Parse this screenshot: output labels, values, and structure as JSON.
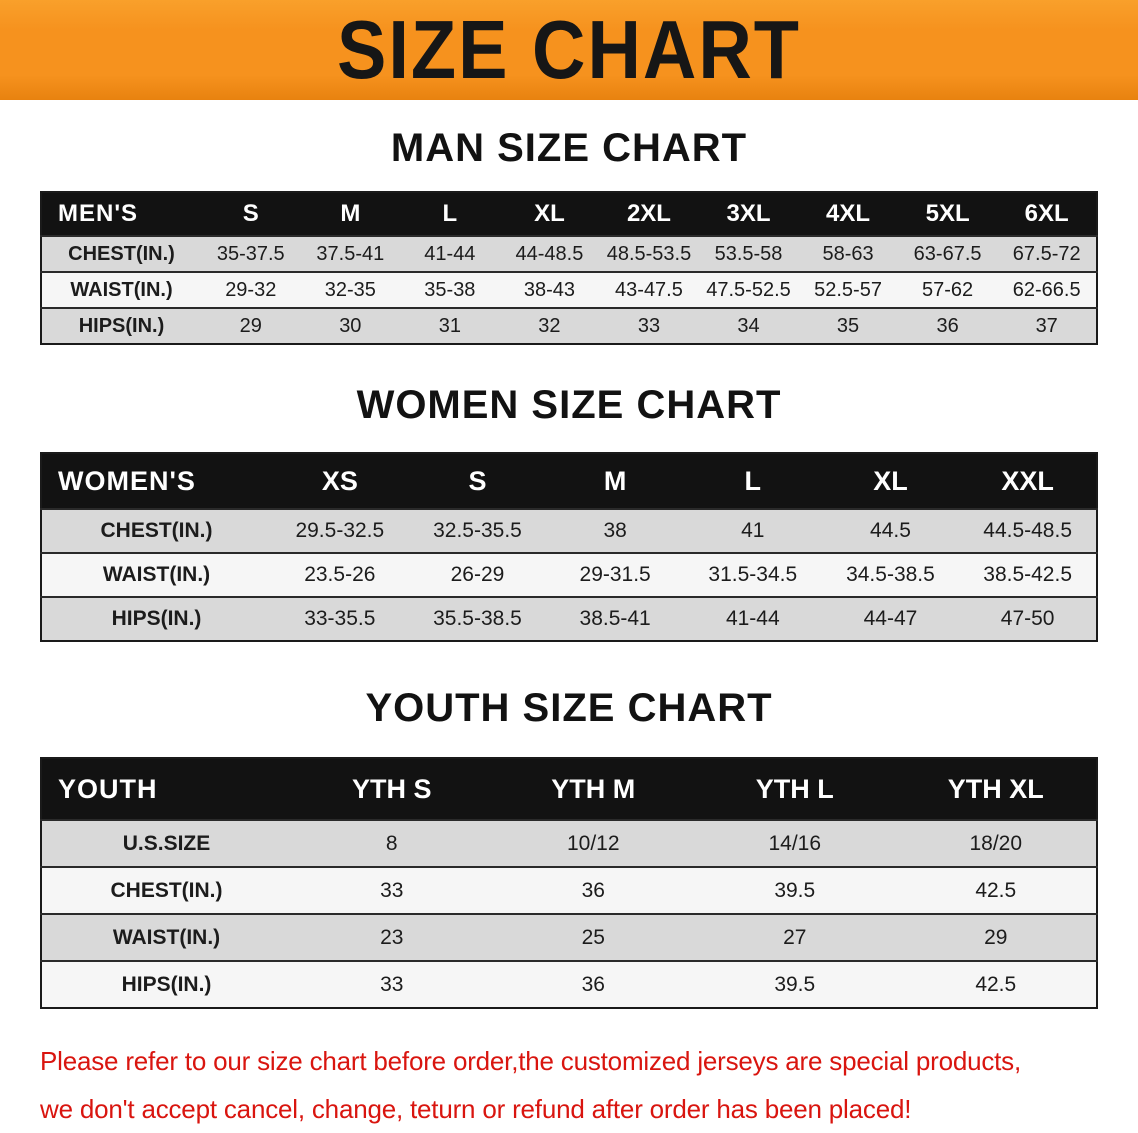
{
  "banner": {
    "title": "SIZE CHART"
  },
  "colors": {
    "banner_orange": "#f6921e",
    "header_black": "#121212",
    "row_gray": "#d9d9d9",
    "row_white": "#f6f6f6",
    "warning_red": "#d9150f"
  },
  "headings": {
    "men": "MAN SIZE CHART",
    "women": "WOMEN SIZE CHART",
    "youth": "YOUTH SIZE CHART"
  },
  "tables": {
    "men": {
      "label": "MEN'S",
      "columns": [
        "S",
        "M",
        "L",
        "XL",
        "2XL",
        "3XL",
        "4XL",
        "5XL",
        "6XL"
      ],
      "rows": [
        {
          "label": "CHEST(IN.)",
          "values": [
            "35-37.5",
            "37.5-41",
            "41-44",
            "44-48.5",
            "48.5-53.5",
            "53.5-58",
            "58-63",
            "63-67.5",
            "67.5-72"
          ]
        },
        {
          "label": "WAIST(IN.)",
          "values": [
            "29-32",
            "32-35",
            "35-38",
            "38-43",
            "43-47.5",
            "47.5-52.5",
            "52.5-57",
            "57-62",
            "62-66.5"
          ]
        },
        {
          "label": "HIPS(IN.)",
          "values": [
            "29",
            "30",
            "31",
            "32",
            "33",
            "34",
            "35",
            "36",
            "37"
          ]
        }
      ]
    },
    "women": {
      "label": "WOMEN'S",
      "columns": [
        "XS",
        "S",
        "M",
        "L",
        "XL",
        "XXL"
      ],
      "rows": [
        {
          "label": "CHEST(IN.)",
          "values": [
            "29.5-32.5",
            "32.5-35.5",
            "38",
            "41",
            "44.5",
            "44.5-48.5"
          ]
        },
        {
          "label": "WAIST(IN.)",
          "values": [
            "23.5-26",
            "26-29",
            "29-31.5",
            "31.5-34.5",
            "34.5-38.5",
            "38.5-42.5"
          ]
        },
        {
          "label": "HIPS(IN.)",
          "values": [
            "33-35.5",
            "35.5-38.5",
            "38.5-41",
            "41-44",
            "44-47",
            "47-50"
          ]
        }
      ]
    },
    "youth": {
      "label": "YOUTH",
      "columns": [
        "YTH S",
        "YTH M",
        "YTH L",
        "YTH XL"
      ],
      "rows": [
        {
          "label": "U.S.SIZE",
          "values": [
            "8",
            "10/12",
            "14/16",
            "18/20"
          ]
        },
        {
          "label": "CHEST(IN.)",
          "values": [
            "33",
            "36",
            "39.5",
            "42.5"
          ]
        },
        {
          "label": "WAIST(IN.)",
          "values": [
            "23",
            "25",
            "27",
            "29"
          ]
        },
        {
          "label": "HIPS(IN.)",
          "values": [
            "33",
            "36",
            "39.5",
            "42.5"
          ]
        }
      ]
    }
  },
  "footer": {
    "line1": "Please refer to our size chart before order,the customized jerseys are special products,",
    "line2": "we don't accept cancel, change, teturn or refund after order has been placed!"
  }
}
